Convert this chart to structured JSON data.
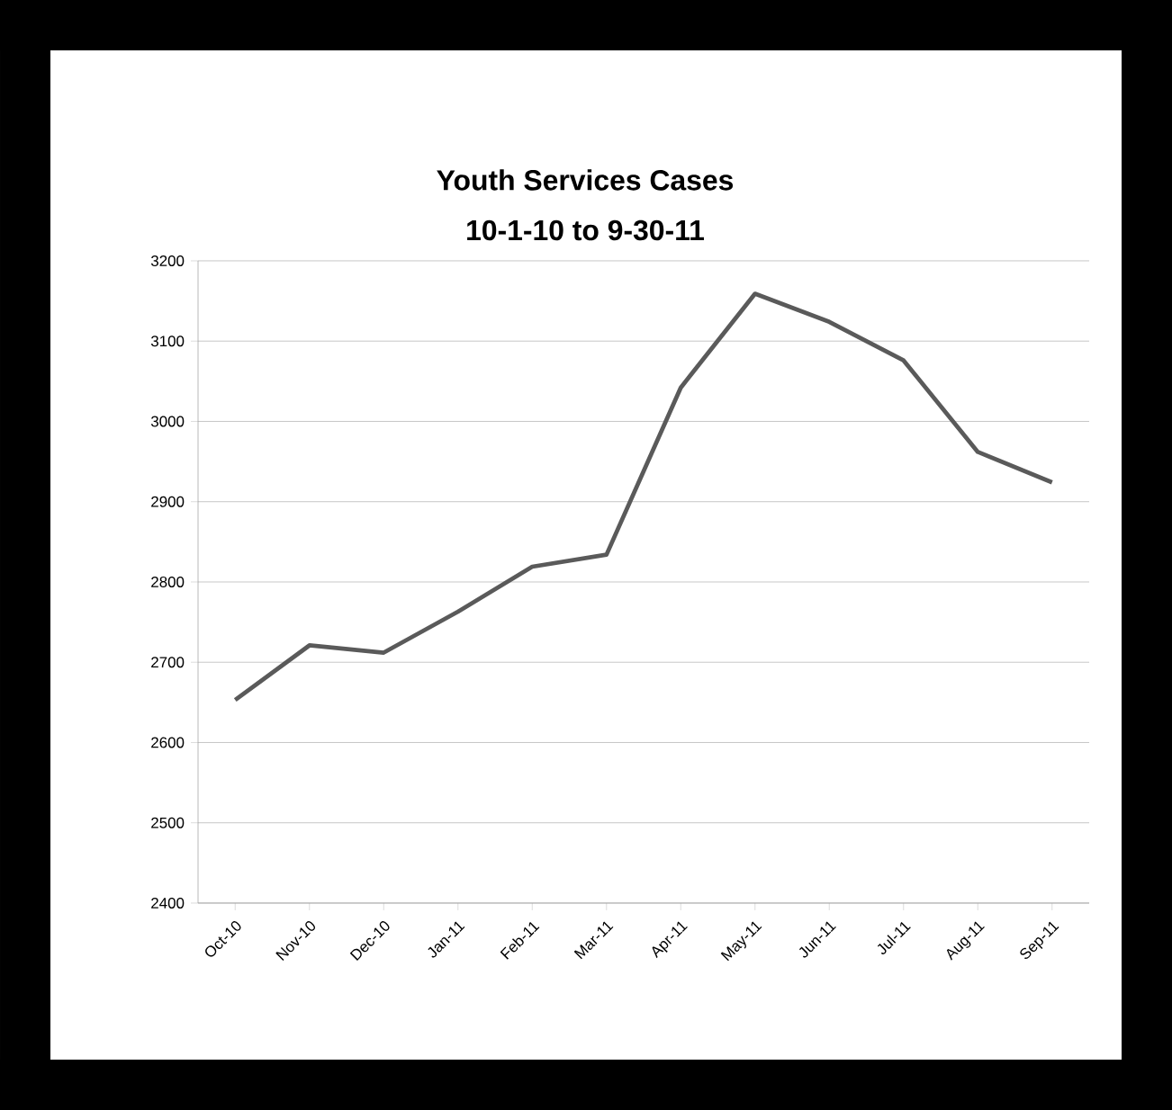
{
  "chart_data": {
    "type": "line",
    "title": "Youth Services Cases",
    "subtitle": "10-1-10  to 9-30-11",
    "categories": [
      "Oct-10",
      "Nov-10",
      "Dec-10",
      "Jan-11",
      "Feb-11",
      "Mar-11",
      "Apr-11",
      "May-11",
      "Jun-11",
      "Jul-11",
      "Aug-11",
      "Sep-11"
    ],
    "series": [
      {
        "color": "#5a5a5a",
        "values": [
          2653,
          2721,
          2712,
          2763,
          2819,
          2834,
          3042,
          3159,
          3124,
          3076,
          2962,
          2924
        ]
      }
    ],
    "ylim": [
      2400,
      3200
    ],
    "yticks": [
      2400,
      2500,
      2600,
      2700,
      2800,
      2900,
      3000,
      3100,
      3200
    ],
    "grid": "y",
    "legend": false,
    "marker": "none",
    "line_style": "solid"
  }
}
